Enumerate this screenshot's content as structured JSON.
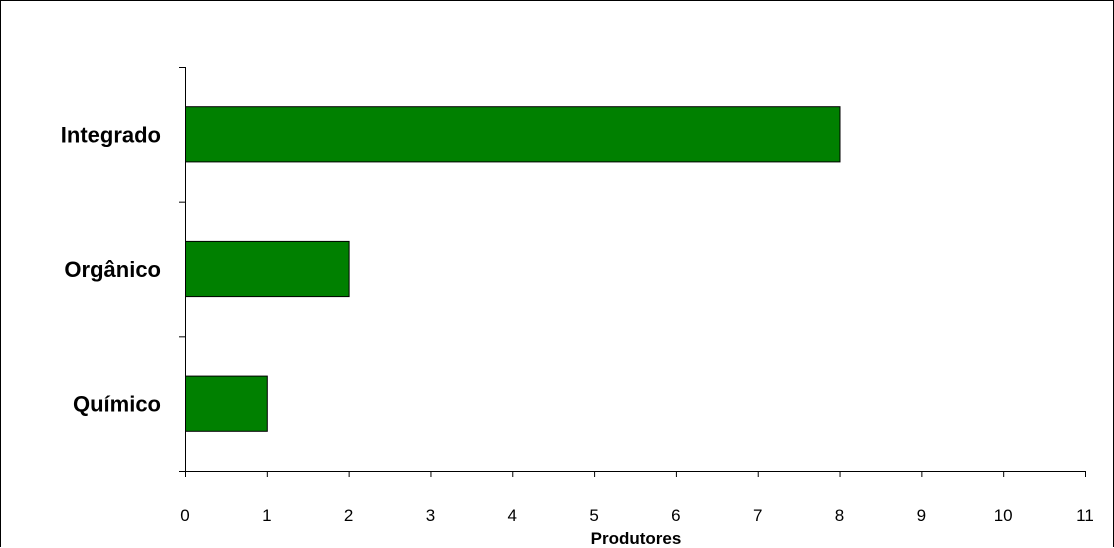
{
  "chart_data": {
    "type": "bar",
    "orientation": "horizontal",
    "categories": [
      "Integrado",
      "Orgânico",
      "Químico"
    ],
    "values": [
      8,
      2,
      1
    ],
    "xlabel": "Produtores",
    "ylabel": "",
    "title": "",
    "xlim": [
      0,
      11
    ],
    "xticks": [
      "0",
      "1",
      "2",
      "3",
      "4",
      "5",
      "6",
      "7",
      "8",
      "9",
      "10",
      "11"
    ],
    "bar_color": "#008000",
    "grid": false,
    "legend": "none"
  }
}
